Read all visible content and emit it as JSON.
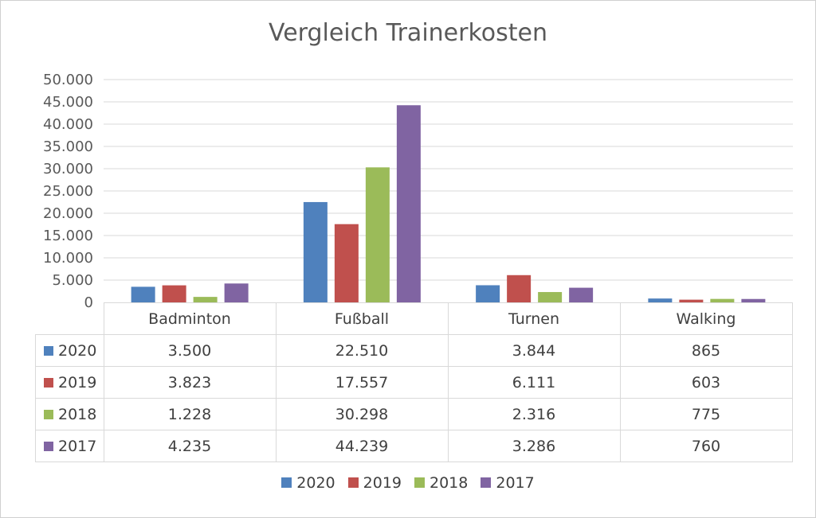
{
  "chart_data": {
    "type": "bar",
    "title": "Vergleich Trainerkosten",
    "categories": [
      "Badminton",
      "Fußball",
      "Turnen",
      "Walking"
    ],
    "series": [
      {
        "name": "2020",
        "color": "#4f81bd",
        "values": [
          3500,
          22510,
          3844,
          865
        ],
        "labels": [
          "3.500",
          "22.510",
          "3.844",
          "865"
        ]
      },
      {
        "name": "2019",
        "color": "#c0504d",
        "values": [
          3823,
          17557,
          6111,
          603
        ],
        "labels": [
          "3.823",
          "17.557",
          "6.111",
          "603"
        ]
      },
      {
        "name": "2018",
        "color": "#9bbb59",
        "values": [
          1228,
          30298,
          2316,
          775
        ],
        "labels": [
          "1.228",
          "30.298",
          "2.316",
          "775"
        ]
      },
      {
        "name": "2017",
        "color": "#8064a2",
        "values": [
          4235,
          44239,
          3286,
          760
        ],
        "labels": [
          "4.235",
          "44.239",
          "3.286",
          "760"
        ]
      }
    ],
    "ylim": [
      0,
      50000
    ],
    "yticks": [
      0,
      5000,
      10000,
      15000,
      20000,
      25000,
      30000,
      35000,
      40000,
      45000,
      50000
    ],
    "ytick_labels": [
      "0",
      "5.000",
      "10.000",
      "15.000",
      "20.000",
      "25.000",
      "30.000",
      "35.000",
      "40.000",
      "45.000",
      "50.000"
    ],
    "grid": true,
    "legend": "bottom",
    "data_table": true
  }
}
